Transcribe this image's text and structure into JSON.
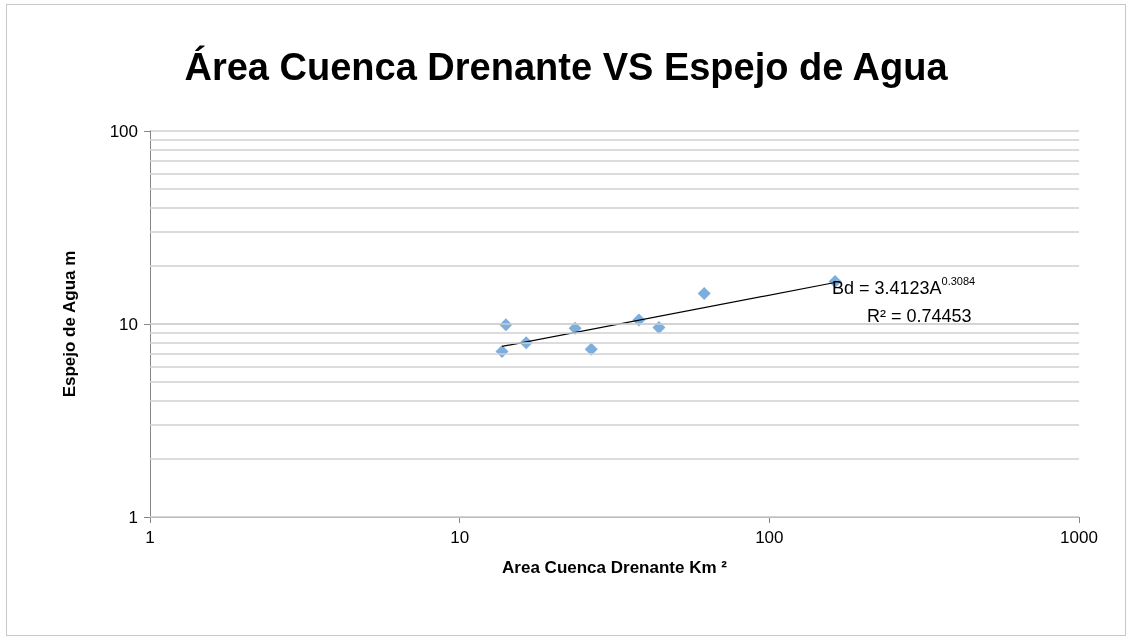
{
  "chart_data": {
    "type": "scatter",
    "title": "Área Cuenca Drenante VS Espejo de Agua",
    "xlabel": "Area Cuenca Drenante Km ²",
    "ylabel": "Espejo de Agua m",
    "series": [
      {
        "color": "#5b9bd5",
        "marker": "diamond",
        "x": [
          13.7,
          14.1,
          16.4,
          23.6,
          26.6,
          37.9,
          44,
          61.6,
          163
        ],
        "values": [
          7.2,
          9.9,
          8.0,
          9.5,
          7.4,
          10.5,
          9.6,
          14.4,
          16.6
        ]
      },
      {
        "type": "line",
        "color": "#000000",
        "marker": "none",
        "line_style": "solid",
        "x": [
          13.7,
          163
        ],
        "values": [
          7.65,
          16.4
        ]
      }
    ],
    "annotations": [
      "Bd = 3.4123A$^{0.3084}$",
      "R² = 0.74453"
    ],
    "log": "xy",
    "xlim": [
      1,
      1000
    ],
    "xticks": [
      1,
      10,
      100,
      1000
    ],
    "ylim": [
      1,
      100
    ],
    "yticks": [
      1,
      10,
      100
    ],
    "grid": "y"
  }
}
